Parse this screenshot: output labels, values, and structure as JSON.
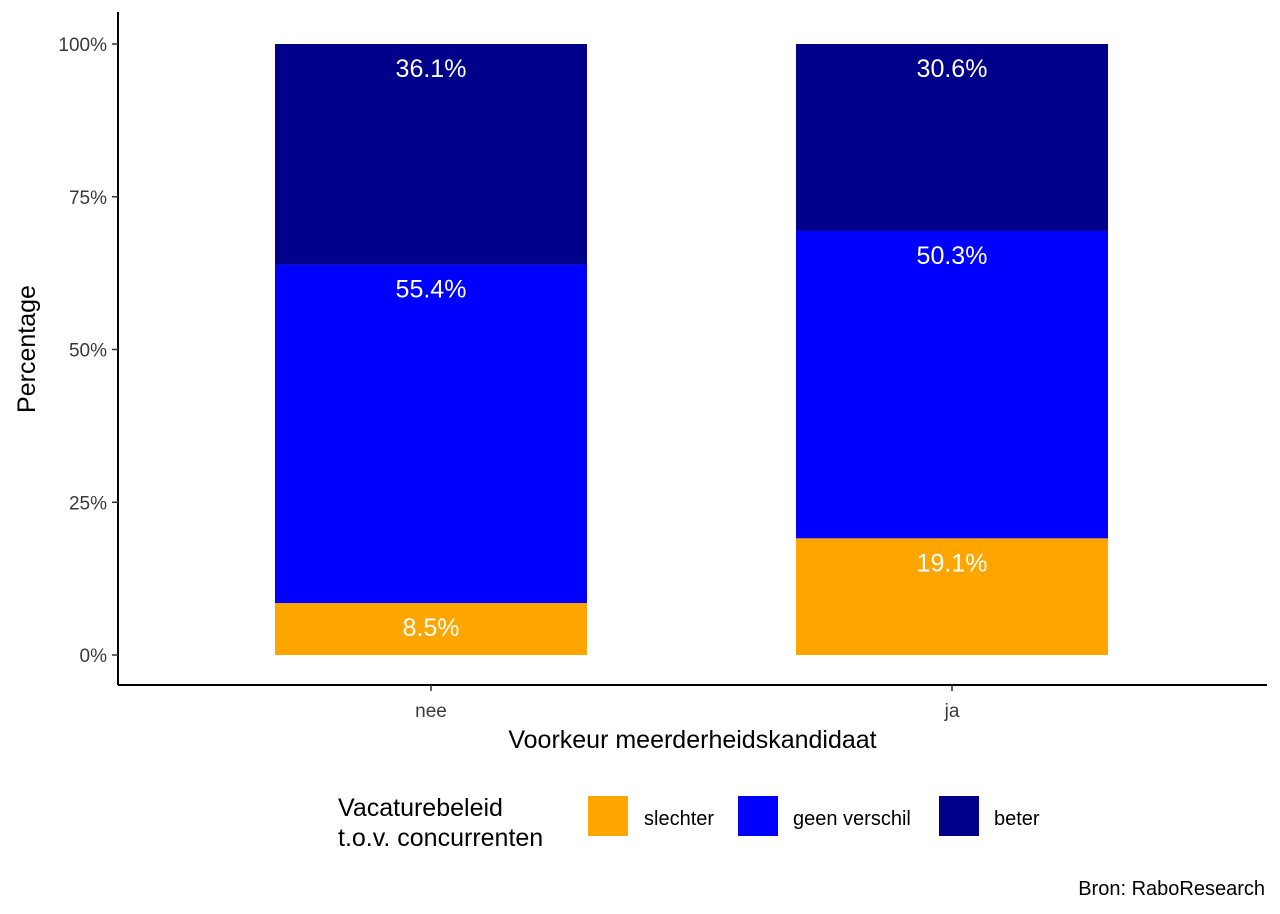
{
  "chart_data": {
    "type": "bar",
    "stacked": true,
    "orientation": "vertical",
    "xlabel": "Voorkeur meerderheidskandidaat",
    "ylabel": "Percentage",
    "categories": [
      "nee",
      "ja"
    ],
    "ylim": [
      0,
      100
    ],
    "y_ticks": [
      0,
      25,
      50,
      75,
      100
    ],
    "y_tick_labels": [
      "0%",
      "25%",
      "50%",
      "75%",
      "100%"
    ],
    "series": [
      {
        "name": "slechter",
        "color": "#FFA500",
        "values": [
          8.5,
          19.1
        ],
        "labels": [
          "8.5%",
          "19.1%"
        ]
      },
      {
        "name": "geen verschil",
        "color": "#0000FF",
        "values": [
          55.4,
          50.3
        ],
        "labels": [
          "55.4%",
          "50.3%"
        ]
      },
      {
        "name": "beter",
        "color": "#00008B",
        "values": [
          36.1,
          30.6
        ],
        "labels": [
          "36.1%",
          "30.6%"
        ]
      }
    ],
    "legend": {
      "title_lines": [
        "Vacaturebeleid",
        "t.o.v. concurrenten"
      ],
      "position": "bottom"
    },
    "caption": "Bron: RaboResearch",
    "grid": false
  }
}
